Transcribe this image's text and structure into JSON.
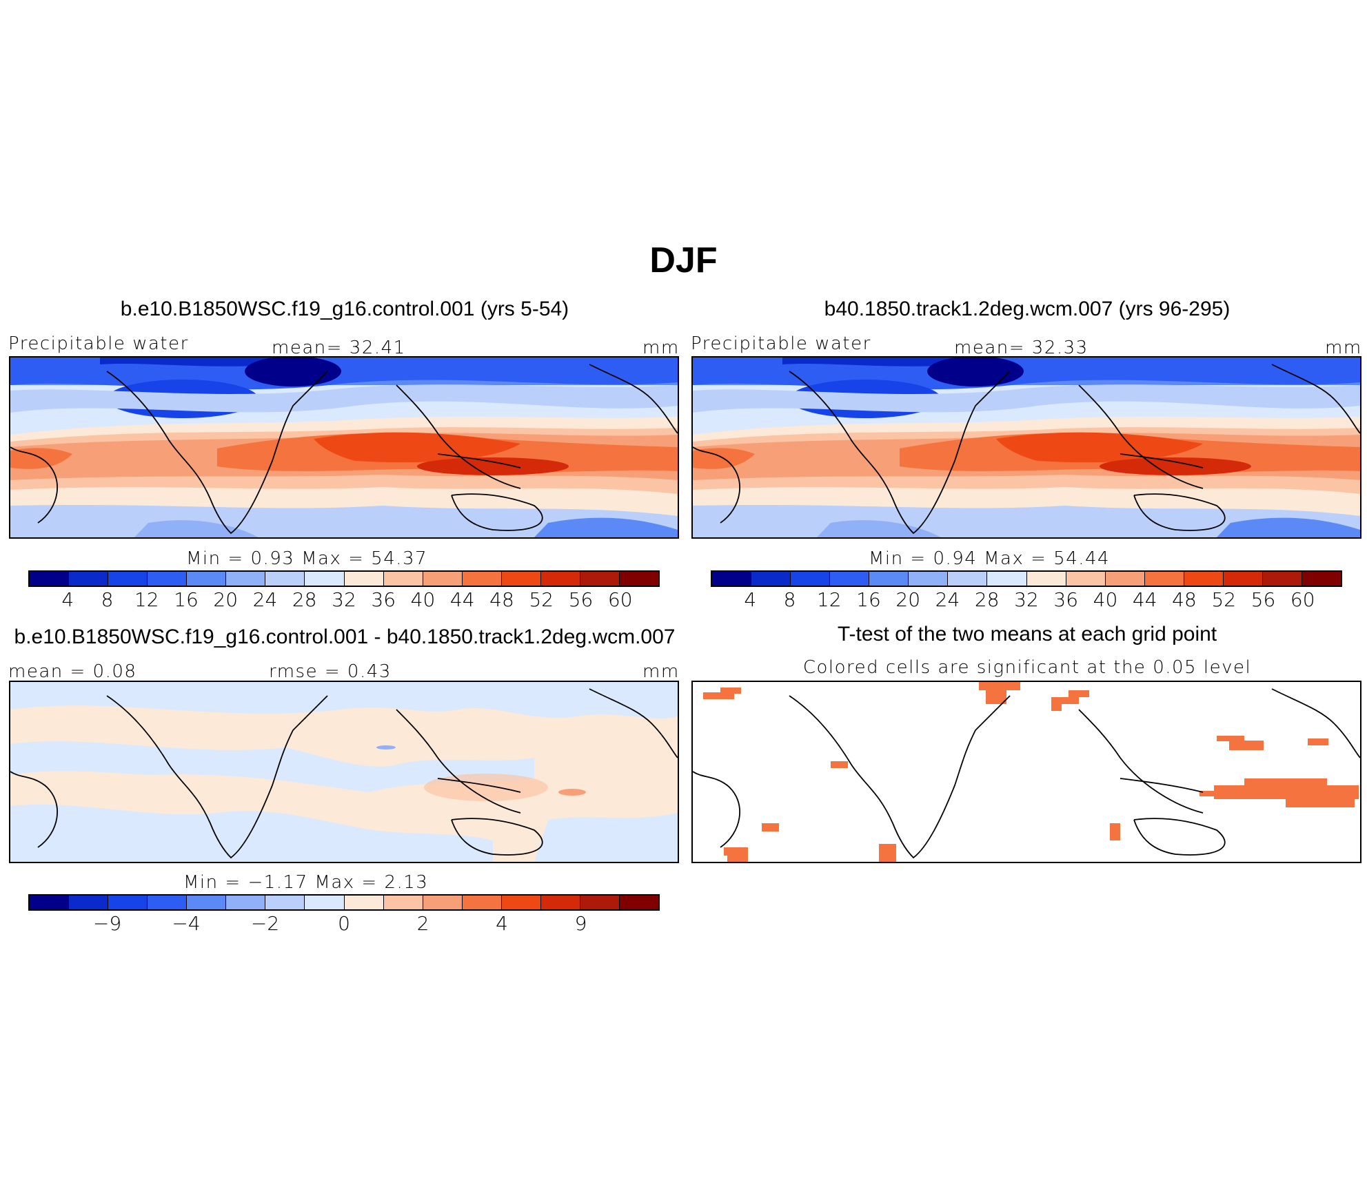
{
  "page": {
    "title": "DJF"
  },
  "panels": {
    "ctrl": {
      "title": "b.e10.B1850WSC.f19_g16.control.001 (yrs 5-54)",
      "left_label": "Precipitable  water",
      "center_label": "mean=   32.41",
      "right_label": "mm",
      "minmax": "Min  =      0.93  Max  =    54.37"
    },
    "exp": {
      "title": "b40.1850.track1.2deg.wcm.007 (yrs 96-295)",
      "left_label": "Precipitable  water",
      "center_label": "mean=   32.33",
      "right_label": "mm",
      "minmax": "Min  =      0.94  Max  =    54.44"
    },
    "diff": {
      "title": "b.e10.B1850WSC.f19_g16.control.001 - b40.1850.track1.2deg.wcm.007",
      "left_label": "mean  =     0.08",
      "center_label": "rmse  =     0.43",
      "right_label": "mm",
      "minmax": "Min  =   −1.17  Max  =      2.13"
    },
    "ttest": {
      "title": "T-test of the two means at each grid point",
      "subtitle": "Colored cells are significant at the 0.05 level"
    }
  },
  "colorbars": {
    "fields": {
      "colors": [
        "#00008b",
        "#0a2acb",
        "#1744e8",
        "#2e5df4",
        "#5b8af6",
        "#90b1f7",
        "#bad0fa",
        "#dae9fd",
        "#fde9d8",
        "#fbc4a5",
        "#f7a077",
        "#f5733e",
        "#ee4914",
        "#d42a0a",
        "#ad1a0a",
        "#800000"
      ],
      "labels": [
        "4",
        "8",
        "12",
        "16",
        "20",
        "24",
        "28",
        "32",
        "36",
        "40",
        "44",
        "48",
        "52",
        "56",
        "60"
      ]
    },
    "diff": {
      "colors": [
        "#00008b",
        "#0a2acb",
        "#1744e8",
        "#2e5df4",
        "#5b8af6",
        "#90b1f7",
        "#bad0fa",
        "#dae9fd",
        "#fde9d8",
        "#fbc4a5",
        "#f7a077",
        "#f5733e",
        "#ee4914",
        "#d42a0a",
        "#ad1a0a",
        "#800000"
      ],
      "labels": [
        {
          "text": "−9",
          "boundary": 2
        },
        {
          "text": "−4",
          "boundary": 4
        },
        {
          "text": "−2",
          "boundary": 6
        },
        {
          "text": "0",
          "boundary": 8
        },
        {
          "text": "2",
          "boundary": 10
        },
        {
          "text": "4",
          "boundary": 12
        },
        {
          "text": "9",
          "boundary": 14
        }
      ]
    }
  },
  "significance_color": "#f5733e"
}
